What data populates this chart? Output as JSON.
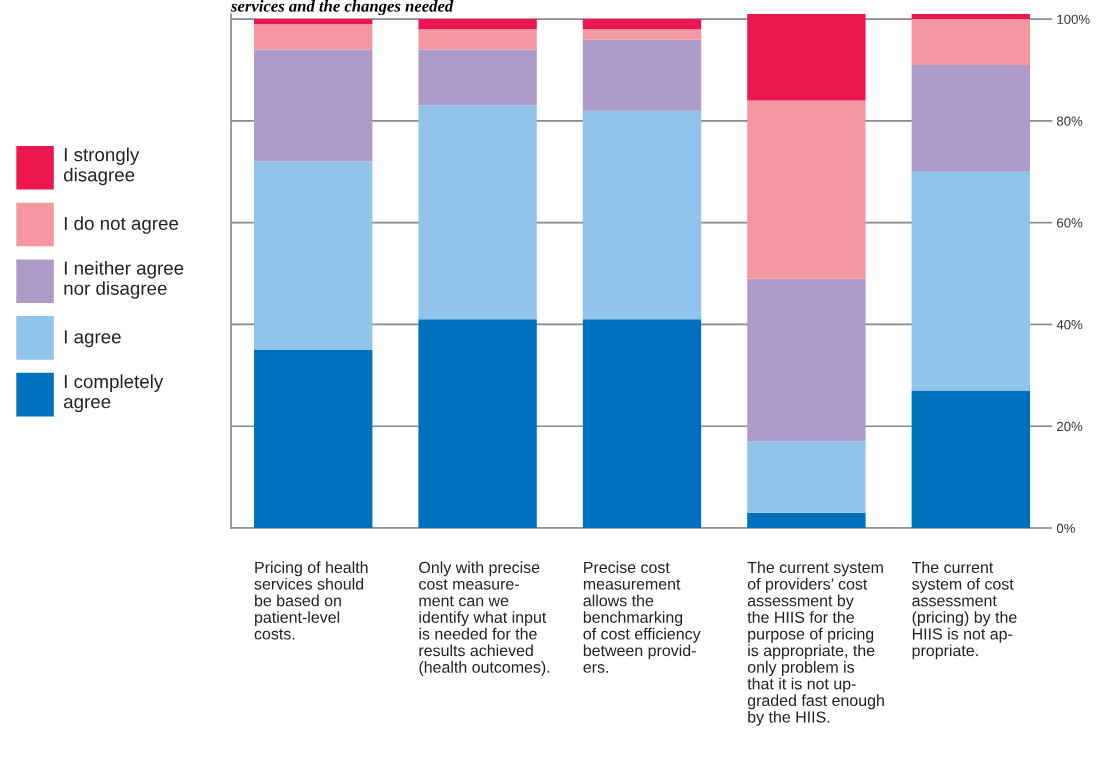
{
  "chart_data": {
    "type": "bar",
    "stacked": true,
    "title": "services and the changes needed",
    "categories": [
      "Pricing of health\nservices should\nbe based on\npatient-level\ncosts.",
      "Only with precise\ncost measure-\nment can we\nidentify what input\nis needed for the\nresults achieved\n(health outcomes).",
      "Precise cost\nmeasurement\nallows the\nbenchmarking\nof cost efficiency\nbetween provid-\ners.",
      "The current system\nof providers’ cost\nassessment by\nthe HIIS for the\npurpose of pricing\nis appropriate, the\nonly problem is\nthat it is not up-\ngraded fast enough\nby the HIIS.",
      "The current\nsystem of cost\nassessment\n(pricing) by the\nHIIS is not ap-\npropriate."
    ],
    "series": [
      {
        "name": "I completely\nagree",
        "color": "#0071bc",
        "values": [
          35,
          41,
          41,
          3,
          27
        ]
      },
      {
        "name": "I agree",
        "color": "#91c4eb",
        "values": [
          37,
          42,
          41,
          14,
          43
        ]
      },
      {
        "name": "I neither agree\nnor disagree",
        "color": "#af9bc9",
        "values": [
          22,
          11,
          14,
          32,
          21
        ]
      },
      {
        "name": "I do not agree",
        "color": "#f497a0",
        "values": [
          5,
          4,
          2,
          35,
          9
        ]
      },
      {
        "name": "I strongly\ndisagree",
        "color": "#ed1651",
        "values": [
          1,
          2,
          2,
          17,
          1
        ]
      }
    ],
    "ylim": [
      0,
      101
    ],
    "yticks": [
      {
        "value": 0,
        "label": "0%"
      },
      {
        "value": 20,
        "label": "20%"
      },
      {
        "value": 40,
        "label": "40%"
      },
      {
        "value": 60,
        "label": "60%"
      },
      {
        "value": 80,
        "label": "80%"
      },
      {
        "value": 100,
        "label": "100%"
      }
    ],
    "grid": "y",
    "legend": "left"
  }
}
